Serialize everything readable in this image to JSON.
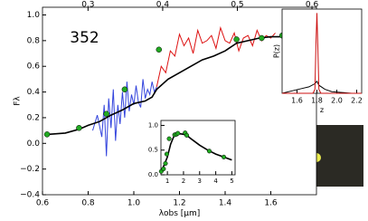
{
  "chart_data": [
    {
      "type": "line",
      "xlabel": "λobs [μm]",
      "ylabel": "Fλ",
      "annotation": "352",
      "xlim": [
        0.6,
        1.8
      ],
      "ylim": [
        -0.4,
        1.06
      ],
      "xticks": [
        0.6,
        0.8,
        {
          "value": 1.0,
          "label": "1.0"
        },
        1.2,
        1.4,
        1.6
      ],
      "yticks": [
        {
          "value": -0.4,
          "label": "−0.4"
        },
        {
          "value": -0.2,
          "label": "−0.2"
        },
        {
          "value": 0,
          "label": "0.0"
        },
        0.2,
        0.4,
        0.6,
        0.8,
        {
          "value": 1.0,
          "label": "1.0"
        }
      ],
      "x2lim": [
        0.239,
        0.606
      ],
      "x2ticks": [
        0.3,
        0.4,
        0.5,
        0.6
      ],
      "series": [
        {
          "mode": "line",
          "color": "#3344dd",
          "x": [
            0.82,
            0.84,
            0.86,
            0.87,
            0.88,
            0.89,
            0.9,
            0.91,
            0.92,
            0.93,
            0.94,
            0.95,
            0.96,
            0.97,
            0.98,
            0.99,
            1.0,
            1.01,
            1.02,
            1.03,
            1.04,
            1.05,
            1.06,
            1.07,
            1.08,
            1.09,
            1.1
          ],
          "values": [
            0.1,
            0.22,
            0.05,
            0.3,
            -0.1,
            0.35,
            0.12,
            0.42,
            0.02,
            0.3,
            0.15,
            0.4,
            0.2,
            0.48,
            0.25,
            0.38,
            0.3,
            0.45,
            0.32,
            0.28,
            0.5,
            0.35,
            0.42,
            0.38,
            0.48,
            0.4,
            0.44
          ]
        },
        {
          "mode": "line",
          "color": "#dd1111",
          "x": [
            1.1,
            1.12,
            1.14,
            1.16,
            1.18,
            1.2,
            1.22,
            1.24,
            1.26,
            1.28,
            1.3,
            1.32,
            1.34,
            1.36,
            1.38,
            1.4,
            1.42,
            1.44,
            1.46,
            1.48,
            1.5,
            1.52,
            1.54,
            1.56,
            1.58,
            1.6,
            1.62
          ],
          "values": [
            0.44,
            0.6,
            0.55,
            0.72,
            0.68,
            0.85,
            0.76,
            0.82,
            0.7,
            0.88,
            0.78,
            0.8,
            0.84,
            0.74,
            0.9,
            0.8,
            0.78,
            0.86,
            0.72,
            0.82,
            0.84,
            0.76,
            0.88,
            0.8,
            0.84,
            0.82,
            0.86
          ]
        },
        {
          "mode": "line",
          "color": "#000000",
          "x": [
            0.62,
            0.7,
            0.76,
            0.8,
            0.85,
            0.9,
            0.95,
            1.0,
            1.05,
            1.08,
            1.1,
            1.15,
            1.2,
            1.25,
            1.3,
            1.35,
            1.4,
            1.45,
            1.5,
            1.55,
            1.6,
            1.65,
            1.7,
            1.75,
            1.8
          ],
          "values": [
            0.07,
            0.08,
            0.11,
            0.14,
            0.17,
            0.22,
            0.26,
            0.31,
            0.33,
            0.36,
            0.42,
            0.5,
            0.55,
            0.6,
            0.65,
            0.68,
            0.72,
            0.78,
            0.8,
            0.82,
            0.83,
            0.83,
            0.82,
            0.84,
            0.85
          ]
        },
        {
          "mode": "markers",
          "color": "#22aa22",
          "x": [
            0.62,
            0.76,
            0.88,
            0.96,
            1.11,
            1.45,
            1.56,
            1.65
          ],
          "values": [
            0.07,
            0.12,
            0.23,
            0.42,
            0.73,
            0.81,
            0.82,
            0.84
          ]
        }
      ]
    },
    {
      "type": "line",
      "xlim": [
        0.6,
        5.2
      ],
      "ylim": [
        0,
        1.1
      ],
      "xticks": [
        1,
        2,
        3,
        4,
        5
      ],
      "yticks": [
        {
          "value": 0,
          "label": "0.0"
        },
        0.5,
        {
          "value": 1.0,
          "label": "1.0"
        }
      ],
      "series": [
        {
          "mode": "line",
          "color": "#000000",
          "x": [
            0.62,
            0.8,
            1.0,
            1.2,
            1.4,
            1.6,
            1.8,
            2.0,
            2.2,
            2.5,
            3.0,
            3.5,
            4.0,
            4.5,
            5.0
          ],
          "values": [
            0.07,
            0.2,
            0.36,
            0.62,
            0.78,
            0.82,
            0.83,
            0.82,
            0.8,
            0.72,
            0.6,
            0.5,
            0.42,
            0.36,
            0.3
          ]
        },
        {
          "mode": "markers",
          "color": "#22aa22",
          "x": [
            0.62,
            0.76,
            0.88,
            0.96,
            1.11,
            1.45,
            1.56,
            1.65,
            2.1,
            2.2,
            3.6,
            4.5
          ],
          "values": [
            0.07,
            0.12,
            0.23,
            0.42,
            0.73,
            0.81,
            0.82,
            0.84,
            0.85,
            0.8,
            0.48,
            0.36
          ]
        }
      ]
    },
    {
      "type": "line",
      "xlabel": "z",
      "ylabel": "P(z)",
      "xlim": [
        1.45,
        2.25
      ],
      "ylim": [
        0,
        1.05
      ],
      "xticks": [
        1.6,
        1.8,
        {
          "value": 2.0,
          "label": "2.0"
        },
        2.2
      ],
      "yticks": [],
      "series": [
        {
          "mode": "line",
          "color": "#000000",
          "x": [
            1.45,
            1.55,
            1.65,
            1.72,
            1.78,
            1.8,
            1.82,
            1.88,
            1.95,
            2.05,
            2.15,
            2.25
          ],
          "values": [
            0.0,
            0.03,
            0.06,
            0.08,
            0.12,
            0.15,
            0.1,
            0.05,
            0.02,
            0.01,
            0.0,
            0.0
          ]
        },
        {
          "mode": "line",
          "color": "#cc1111",
          "x": [
            1.45,
            1.76,
            1.78,
            1.79,
            1.8,
            1.81,
            1.82,
            1.84,
            2.25
          ],
          "values": [
            0.0,
            0.0,
            0.05,
            0.6,
            1.0,
            0.55,
            0.05,
            0.0,
            0.0
          ]
        }
      ]
    }
  ]
}
